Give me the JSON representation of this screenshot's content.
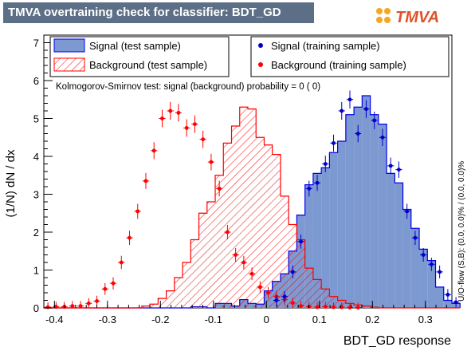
{
  "header": {
    "title": "TMVA overtraining check for classifier: BDT_GD",
    "logo_text": "TMVA"
  },
  "legend": {
    "signal_test": "Signal (test sample)",
    "background_test": "Background (test sample)",
    "signal_train": "Signal (training sample)",
    "background_train": "Background (training sample)"
  },
  "annotation": "Kolmogorov-Smirnov test: signal (background) probability =     0 (    0)",
  "side_label": "U/O-flow (S,B): (0.0, 0.0)% / (0.0, 0.0)%",
  "colors": {
    "signal_fill": "#7d99d1",
    "signal_line": "#0000ee",
    "background_line": "#ff0000",
    "signal_point": "#0000cc",
    "background_point": "#ff0000",
    "title_bar": "#5c6f86"
  },
  "chart_data": {
    "type": "histogram",
    "xlabel": "BDT_GD response",
    "ylabel": "(1/N) dN / dx",
    "xlim": [
      -0.42,
      0.35
    ],
    "ylim": [
      0,
      7.2
    ],
    "x_ticks": [
      "-0.4",
      "-0.3",
      "-0.2",
      "-0.1",
      "0",
      "0.1",
      "0.2",
      "0.3"
    ],
    "x_tick_values": [
      -0.4,
      -0.3,
      -0.2,
      -0.1,
      0,
      0.1,
      0.2,
      0.3
    ],
    "y_ticks": [
      "0",
      "1",
      "2",
      "3",
      "4",
      "5",
      "6",
      "7"
    ],
    "y_tick_values": [
      0,
      1,
      2,
      3,
      4,
      5,
      6,
      7
    ],
    "bin_edges_start": -0.42,
    "bin_width": 0.0154,
    "signal_test": [
      0,
      0,
      0,
      0,
      0,
      0,
      0,
      0,
      0,
      0,
      0,
      0,
      0,
      0,
      0,
      0,
      0,
      0,
      0.03,
      0.03,
      0,
      0.12,
      0.12,
      0.05,
      0.22,
      0.12,
      0.1,
      0.45,
      0.7,
      0.9,
      1.5,
      2.45,
      3.25,
      3.55,
      3.7,
      4.1,
      4.4,
      5.1,
      5.3,
      5.6,
      5.1,
      4.85,
      3.55,
      3.3,
      2.6,
      2.1,
      1.55,
      1.25,
      0.55,
      0.2,
      0.12
    ],
    "background_test": [
      0,
      0,
      0,
      0,
      0,
      0,
      0,
      0,
      0,
      0,
      0,
      0,
      0.05,
      0.1,
      0.25,
      0.45,
      0.8,
      1.2,
      1.8,
      2.5,
      2.8,
      3.5,
      4.35,
      4.8,
      5.3,
      5.25,
      4.5,
      4.3,
      4.05,
      2.95,
      2.2,
      1.8,
      1.05,
      0.75,
      0.5,
      0.3,
      0.2,
      0.12,
      0.08,
      0.05,
      0.02,
      0,
      0,
      0,
      0,
      0,
      0,
      0,
      0,
      0,
      0
    ],
    "signal_train": [
      0,
      0,
      0,
      0,
      0,
      0,
      0,
      0,
      0,
      0,
      0,
      0,
      0,
      0,
      0,
      0,
      0,
      0,
      0,
      0,
      0,
      0,
      0,
      0,
      0,
      0,
      0,
      0,
      0.2,
      0.3,
      0.95,
      1.75,
      3.15,
      3.3,
      3.8,
      4.35,
      5.2,
      5.5,
      4.6,
      5.25,
      4.95,
      4.5,
      3.75,
      3.65,
      2.55,
      1.85,
      1.4,
      1.15,
      0.95,
      0.35,
      0.15
    ],
    "background_train": [
      0.02,
      0.03,
      0.03,
      0.05,
      0.05,
      0.12,
      0.18,
      0.5,
      0.65,
      1.2,
      1.85,
      2.55,
      3.35,
      4.15,
      5.0,
      5.2,
      5.15,
      4.75,
      4.85,
      4.45,
      3.85,
      3.15,
      2.0,
      1.4,
      1.2,
      0.9,
      0.55,
      0.4,
      0.3,
      0.22,
      0.13,
      0.05,
      0.03,
      0.02,
      0.03,
      0.02,
      0.02,
      0.01,
      0.01,
      0,
      0,
      0,
      0,
      0,
      0,
      0,
      0,
      0,
      0,
      0,
      0
    ]
  }
}
